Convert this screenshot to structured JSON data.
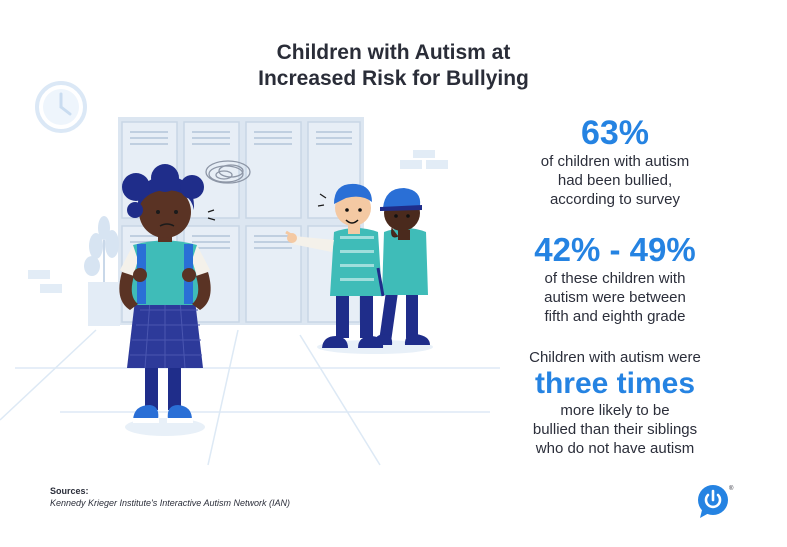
{
  "title_line1": "Children with Autism at",
  "title_line2": "Increased Risk for Bullying",
  "stats": [
    {
      "value": "63%",
      "lines": [
        "of children with autism",
        "had been bullied,",
        "according to survey"
      ]
    },
    {
      "value": "42% - 49%",
      "lines": [
        "of these children with",
        "autism were between",
        "fifth and eighth grade"
      ]
    },
    {
      "intro": "Children with autism were",
      "value": "three times",
      "lines": [
        "more likely to be",
        "bullied than their siblings",
        "who do not have autism"
      ]
    }
  ],
  "sources": {
    "heading": "Sources:",
    "text": "Kennedy Krieger Institute's Interactive Autism Network (IAN)"
  },
  "logo": {
    "icon": "power-speech-bubble-icon",
    "mark": "®"
  },
  "colors": {
    "accent": "#2583e2",
    "text": "#2b2e3a",
    "locker": "#dfe8f2",
    "floor_line": "#dbe7f3",
    "navy": "#1f2d8a",
    "teal": "#3fb8b4"
  }
}
